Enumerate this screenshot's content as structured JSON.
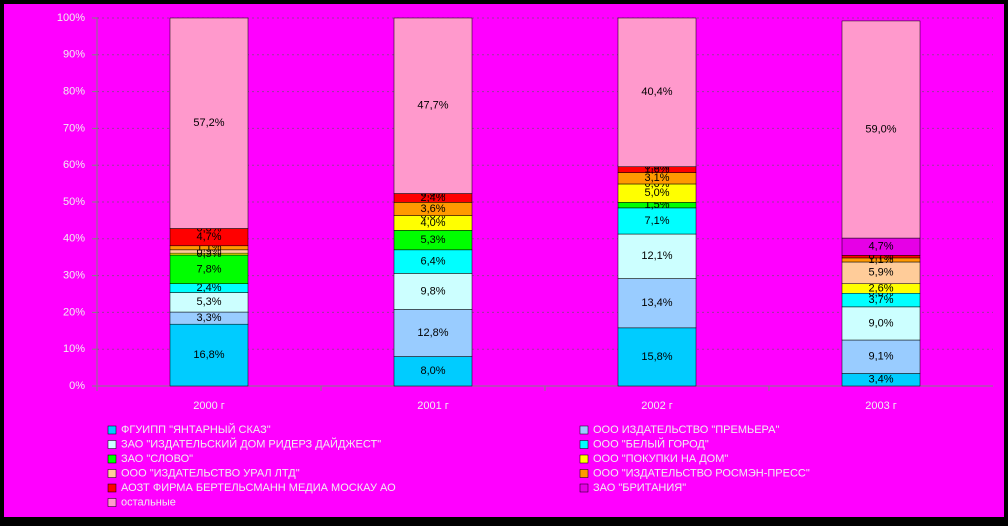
{
  "chart_data": {
    "type": "stacked_bar",
    "categories": [
      "2000 г",
      "2001 г",
      "2002 г",
      "2003 г"
    ],
    "ylim": [
      0,
      100
    ],
    "yticks": [
      {
        "value": 0,
        "label": "0%"
      },
      {
        "value": 10,
        "label": "10%"
      },
      {
        "value": 20,
        "label": "20%"
      },
      {
        "value": 30,
        "label": "30%"
      },
      {
        "value": 40,
        "label": "40%"
      },
      {
        "value": 50,
        "label": "50%"
      },
      {
        "value": 60,
        "label": "60%"
      },
      {
        "value": 70,
        "label": "70%"
      },
      {
        "value": 80,
        "label": "80%"
      },
      {
        "value": 90,
        "label": "90%"
      },
      {
        "value": 100,
        "label": "100%"
      }
    ],
    "grid": true,
    "legend": "bottom",
    "series": [
      {
        "name": "ФГУИПП \"ЯНТАРНЫЙ СКАЗ\"",
        "color": "#00ccff",
        "values": [
          16.8,
          8.0,
          15.8,
          3.4
        ],
        "value_labels": [
          "16,8%",
          "8,0%",
          "15,8%",
          "3,4%"
        ]
      },
      {
        "name": "ООО ИЗДАТЕЛЬСТВО \"ПРЕМЬЕРА\"",
        "color": "#99ccff",
        "values": [
          3.3,
          12.8,
          13.4,
          9.1
        ],
        "value_labels": [
          "3,3%",
          "12,8%",
          "13,4%",
          "9,1%"
        ]
      },
      {
        "name": "ЗАО \"ИЗДАТЕЛЬСКИЙ ДОМ РИДЕРЗ ДАЙДЖЕСТ\"",
        "color": "#ccffff",
        "values": [
          5.3,
          9.8,
          12.1,
          9.0
        ],
        "value_labels": [
          "5,3%",
          "9,8%",
          "12,1%",
          "9,0%"
        ]
      },
      {
        "name": "ООО \"БЕЛЫЙ ГОРОД\"",
        "color": "#00ffff",
        "values": [
          2.4,
          6.4,
          7.1,
          3.7
        ],
        "value_labels": [
          "2,4%",
          "6,4%",
          "7,1%",
          "3,7%"
        ]
      },
      {
        "name": "ЗАО \"СЛОВО\"",
        "color": "#00ff00",
        "values": [
          7.8,
          5.3,
          1.5,
          0.0
        ],
        "value_labels": [
          "7,8%",
          "5,3%",
          "1,5%",
          "0,0%"
        ]
      },
      {
        "name": "ООО \"ПОКУПКИ НА ДОМ\"",
        "color": "#ffff00",
        "values": [
          0.5,
          4.0,
          5.0,
          2.6
        ],
        "value_labels": [
          "0,5%",
          "4,0%",
          "5,0%",
          "2,6%"
        ]
      },
      {
        "name": "ООО \"ИЗДАТЕЛЬСТВО УРАЛ ЛТД\"",
        "color": "#ffcc99",
        "values": [
          0.9,
          0.0,
          0.0,
          5.9
        ],
        "value_labels": [
          "0,9%",
          "0,0%",
          "0,0%",
          "5,9%"
        ]
      },
      {
        "name": "ООО \"ИЗДАТЕЛЬСТВО РОСМЭН-ПРЕСС\"",
        "color": "#ff9900",
        "values": [
          1.1,
          3.6,
          3.1,
          1.1
        ],
        "value_labels": [
          "1,1%",
          "3,6%",
          "3,1%",
          "1,1%"
        ]
      },
      {
        "name": "АОЗТ ФИРМА БЕРТЕЛЬСМАНН МЕДИА МОСКАУ АО",
        "color": "#ff0000",
        "values": [
          4.7,
          2.4,
          1.6,
          0.7
        ],
        "value_labels": [
          "4,7%",
          "2,4%",
          "1,6%",
          "0,7%"
        ]
      },
      {
        "name": "ЗАО \"БРИТАНИЯ\"",
        "color": "#e600e6",
        "values": [
          0.0,
          0.0,
          0.0,
          4.7
        ],
        "value_labels": [
          "0,0%",
          "0,0%",
          "0,0%",
          "4,7%"
        ]
      },
      {
        "name": "остальные",
        "color": "#ff99cc",
        "values": [
          57.2,
          47.7,
          40.4,
          59.0
        ],
        "value_labels": [
          "57,2%",
          "47,7%",
          "40,4%",
          "59,0%"
        ]
      }
    ]
  }
}
